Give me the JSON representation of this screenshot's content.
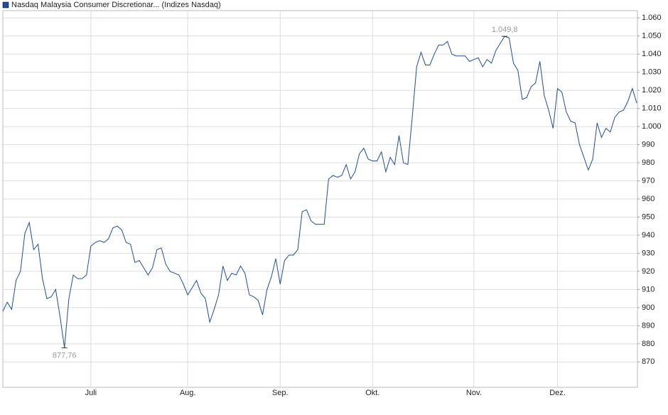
{
  "chart_data": {
    "type": "line",
    "series": [
      {
        "name": "Nasdaq Malaysia Consumer Discretionar... (Indizes Nasdaq)",
        "color": "#1f4e9a",
        "values": [
          898,
          903,
          899,
          915,
          920,
          941,
          947,
          932,
          935,
          916,
          905,
          906,
          910,
          895,
          877.76,
          905,
          918,
          916,
          916,
          918,
          934,
          936,
          937,
          936,
          938,
          944,
          945,
          943,
          936,
          935,
          925,
          926,
          922,
          918,
          922,
          932,
          933,
          924,
          920,
          919,
          918,
          913,
          907,
          911,
          915,
          908,
          905,
          892,
          899,
          907,
          923,
          915,
          919,
          918,
          923,
          919,
          907,
          906,
          904,
          896,
          910,
          917,
          927,
          913,
          926,
          929,
          929,
          932,
          953,
          954,
          948,
          946,
          946,
          946,
          971,
          973,
          972,
          973,
          979,
          971,
          975,
          985,
          988,
          982,
          981,
          981,
          986,
          975,
          983,
          979,
          995,
          980,
          979,
          1005,
          1033,
          1041,
          1034,
          1034,
          1040,
          1045,
          1045,
          1047,
          1040,
          1039,
          1039,
          1039,
          1036,
          1037,
          1038,
          1033,
          1037,
          1035,
          1042,
          1046,
          1049.8,
          1049,
          1035,
          1031,
          1015,
          1016,
          1022,
          1024,
          1036,
          1017,
          1009,
          999,
          1021,
          1019,
          1008,
          1003,
          1002,
          990,
          983,
          976,
          982,
          1002,
          994,
          999,
          997,
          1005,
          1008,
          1009,
          1014,
          1021,
          1013
        ]
      }
    ],
    "xlim": [
      0,
      144
    ],
    "xticks": [
      {
        "value": 20,
        "label": "Juli"
      },
      {
        "value": 42,
        "label": "Aug."
      },
      {
        "value": 63,
        "label": "Sep."
      },
      {
        "value": 84,
        "label": "Okt."
      },
      {
        "value": 107,
        "label": "Nov."
      },
      {
        "value": 126,
        "label": "Dez."
      }
    ],
    "ylim": [
      856,
      1064
    ],
    "yticks": [
      870,
      880,
      890,
      900,
      910,
      920,
      930,
      940,
      950,
      960,
      970,
      980,
      990,
      {
        "value": 1000,
        "label": "1.000"
      },
      {
        "value": 1010,
        "label": "1.010"
      },
      {
        "value": 1020,
        "label": "1.020"
      },
      {
        "value": 1030,
        "label": "1.030"
      },
      {
        "value": 1040,
        "label": "1.040"
      },
      {
        "value": 1050,
        "label": "1.050"
      },
      {
        "value": 1060,
        "label": "1.060"
      }
    ],
    "annotations": [
      {
        "text": "877,76",
        "value": 877.76
      },
      {
        "text": "1.049,8",
        "value": 1049.8
      }
    ],
    "grid": true
  }
}
